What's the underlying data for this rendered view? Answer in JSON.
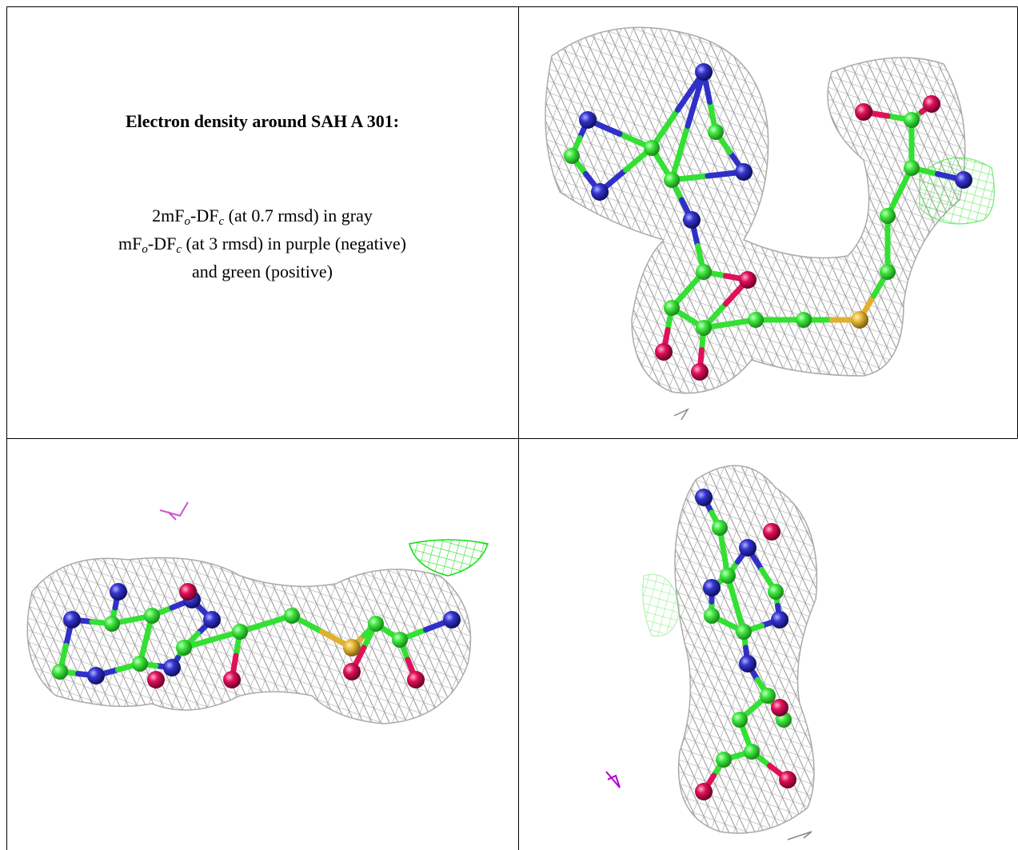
{
  "title": "Electron density around SAH A 301:",
  "legend": {
    "lines": [
      [
        "2mF",
        "o",
        "-DF",
        "c",
        " (at 0.7 rmsd) in gray"
      ],
      [
        "mF",
        "o",
        "-DF",
        "c",
        " (at 3 rmsd) in purple (negative)"
      ],
      [
        "and green (positive)"
      ]
    ]
  }
}
